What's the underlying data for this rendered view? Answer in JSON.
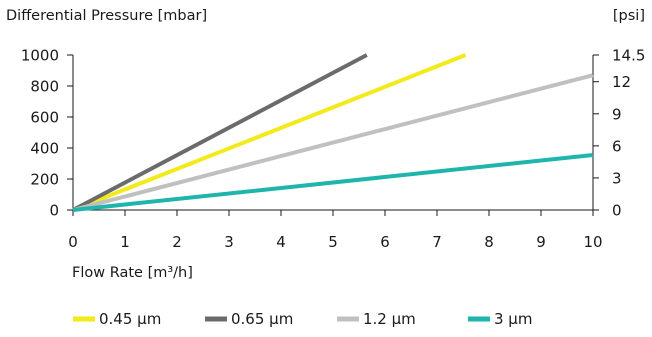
{
  "chart_data": {
    "type": "line",
    "title": "",
    "ylabel_left": "Differential Pressure [mbar]",
    "ylabel_right": "[psi]",
    "xlabel": "Flow Rate [m³/h]",
    "xlim": [
      0,
      10
    ],
    "ylim": [
      0,
      1000
    ],
    "y2lim": [
      0,
      14.5
    ],
    "x_ticks": [
      "0",
      "1",
      "2",
      "3",
      "4",
      "5",
      "6",
      "7",
      "8",
      "9",
      "10"
    ],
    "y_ticks": [
      "0",
      "200",
      "400",
      "600",
      "800",
      "1000"
    ],
    "y2_ticks": [
      "0",
      "3",
      "6",
      "9",
      "12",
      "14.5"
    ],
    "grid": false,
    "legend_position": "bottom",
    "series": [
      {
        "name": "0.45 μm",
        "color": "#f2ea1b",
        "x": [
          0,
          7.55
        ],
        "y": [
          0,
          1000
        ]
      },
      {
        "name": "0.65 μm",
        "color": "#6b6b6b",
        "x": [
          0,
          5.65
        ],
        "y": [
          0,
          1000
        ]
      },
      {
        "name": "1.2 μm",
        "color": "#c0c0c0",
        "x": [
          0,
          10
        ],
        "y": [
          0,
          870
        ]
      },
      {
        "name": "3 μm",
        "color": "#1fb5ad",
        "x": [
          0,
          10
        ],
        "y": [
          0,
          355
        ]
      }
    ]
  }
}
